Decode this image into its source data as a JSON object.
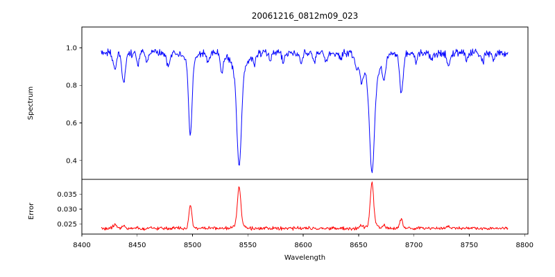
{
  "chart_data": {
    "type": "line",
    "title": "20061216_0812m09_023",
    "xlabel": "Wavelength",
    "xlim": [
      8400,
      8803
    ],
    "xticks": [
      8400,
      8450,
      8500,
      8550,
      8600,
      8650,
      8700,
      8750,
      8800
    ],
    "x_data_range": [
      8417.5,
      8785.0
    ],
    "x_step": 0.55,
    "background_color": "#ffffff",
    "axis_color": "#000000",
    "legend": "none",
    "grid": false,
    "panels": [
      {
        "name": "spectrum",
        "ylabel": "Spectrum",
        "ylim": [
          0.3,
          1.11
        ],
        "yticks": [
          1.0,
          0.8,
          0.6,
          0.4
        ],
        "ytick_labels": [
          "1.0",
          "0.8",
          "0.6",
          "0.4"
        ],
        "line_color": "#0000ff",
        "continuum": 0.971,
        "noise_amplitude": 0.026,
        "absorption_features": [
          {
            "center": 8429.8,
            "depth": 0.085,
            "sigma": 1.4
          },
          {
            "center": 8437.8,
            "depth": 0.155,
            "sigma": 1.5
          },
          {
            "center": 8450.5,
            "depth": 0.055,
            "sigma": 1.1
          },
          {
            "center": 8459.0,
            "depth": 0.048,
            "sigma": 1.0
          },
          {
            "center": 8478.0,
            "depth": 0.075,
            "sigma": 1.4
          },
          {
            "center": 8498.0,
            "depth": 0.39,
            "sigma": 1.5
          },
          {
            "center": 8498.0,
            "depth": 0.05,
            "sigma": 4.5
          },
          {
            "center": 8514.0,
            "depth": 0.045,
            "sigma": 1.1
          },
          {
            "center": 8526.5,
            "depth": 0.1,
            "sigma": 1.4
          },
          {
            "center": 8542.1,
            "depth": 0.49,
            "sigma": 2.0
          },
          {
            "center": 8542.1,
            "depth": 0.11,
            "sigma": 6.0
          },
          {
            "center": 8556.0,
            "depth": 0.05,
            "sigma": 1.1
          },
          {
            "center": 8570.0,
            "depth": 0.04,
            "sigma": 1.0
          },
          {
            "center": 8582.0,
            "depth": 0.05,
            "sigma": 1.1
          },
          {
            "center": 8598.0,
            "depth": 0.06,
            "sigma": 1.2
          },
          {
            "center": 8610.0,
            "depth": 0.04,
            "sigma": 1.0
          },
          {
            "center": 8621.0,
            "depth": 0.05,
            "sigma": 1.1
          },
          {
            "center": 8634.0,
            "depth": 0.04,
            "sigma": 1.0
          },
          {
            "center": 8648.0,
            "depth": 0.065,
            "sigma": 1.3
          },
          {
            "center": 8652.5,
            "depth": 0.11,
            "sigma": 1.5
          },
          {
            "center": 8662.1,
            "depth": 0.5,
            "sigma": 2.2
          },
          {
            "center": 8662.1,
            "depth": 0.13,
            "sigma": 7.0
          },
          {
            "center": 8673.0,
            "depth": 0.1,
            "sigma": 1.5
          },
          {
            "center": 8688.6,
            "depth": 0.215,
            "sigma": 1.6
          },
          {
            "center": 8702.0,
            "depth": 0.055,
            "sigma": 1.1
          },
          {
            "center": 8716.0,
            "depth": 0.045,
            "sigma": 1.0
          },
          {
            "center": 8731.0,
            "depth": 0.065,
            "sigma": 1.3
          },
          {
            "center": 8748.0,
            "depth": 0.045,
            "sigma": 1.0
          },
          {
            "center": 8762.0,
            "depth": 0.05,
            "sigma": 1.1
          },
          {
            "center": 8772.0,
            "depth": 0.04,
            "sigma": 1.0
          }
        ]
      },
      {
        "name": "error",
        "ylabel": "Error",
        "ylim": [
          0.0217,
          0.0399
        ],
        "yticks": [
          0.035,
          0.03,
          0.025
        ],
        "ytick_labels": [
          "0.035",
          "0.030",
          "0.025"
        ],
        "line_color": "#ff0000",
        "baseline": 0.0236,
        "noise_amplitude": 0.0007,
        "emission_features": [
          {
            "center": 8429.8,
            "height": 0.001,
            "sigma": 1.8
          },
          {
            "center": 8437.8,
            "height": 0.0009,
            "sigma": 1.5
          },
          {
            "center": 8498.0,
            "height": 0.0079,
            "sigma": 1.3
          },
          {
            "center": 8542.1,
            "height": 0.0128,
            "sigma": 1.5
          },
          {
            "center": 8542.1,
            "height": 0.0012,
            "sigma": 4.0
          },
          {
            "center": 8652.5,
            "height": 0.0008,
            "sigma": 1.5
          },
          {
            "center": 8662.1,
            "height": 0.014,
            "sigma": 1.5
          },
          {
            "center": 8662.1,
            "height": 0.0012,
            "sigma": 4.5
          },
          {
            "center": 8673.0,
            "height": 0.0008,
            "sigma": 1.5
          },
          {
            "center": 8688.6,
            "height": 0.0032,
            "sigma": 1.3
          },
          {
            "center": 8731.0,
            "height": 0.0006,
            "sigma": 1.2
          }
        ]
      }
    ]
  }
}
